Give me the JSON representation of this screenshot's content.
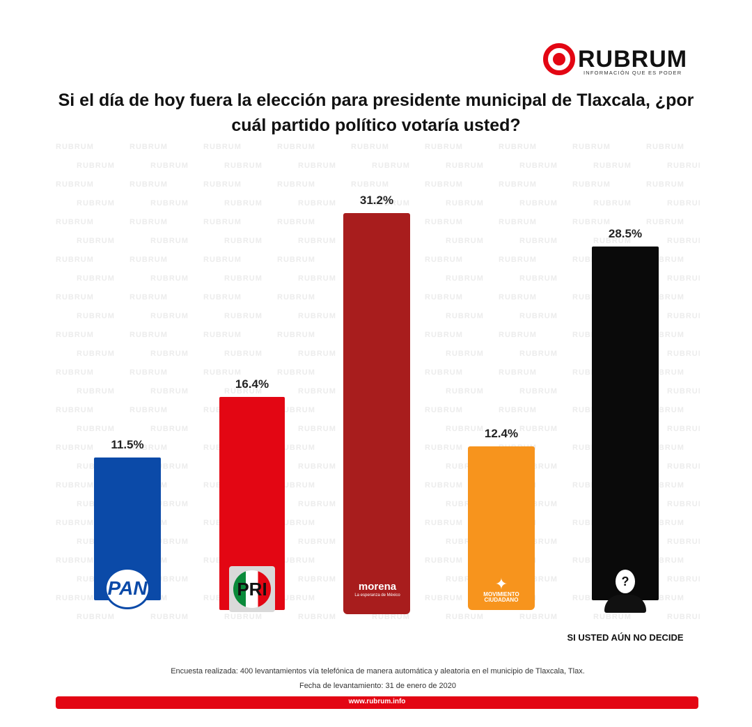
{
  "brand": {
    "name": "RUBRUM",
    "tagline": "INFORMACIÓN QUE ES PODER",
    "accent": "#e30613"
  },
  "title": "Si el día de hoy fuera la elección para presidente municipal de Tlaxcala, ¿por cuál partido político votaría usted?",
  "watermark_text": "RUBRUM",
  "chart_data": {
    "type": "bar",
    "title": "Si el día de hoy fuera la elección para presidente municipal de Tlaxcala, ¿por cuál partido político votaría usted?",
    "categories": [
      "PAN",
      "PRI",
      "morena",
      "Movimiento Ciudadano",
      "SI USTED AÚN NO DECIDE"
    ],
    "values": [
      11.5,
      16.4,
      31.2,
      12.4,
      28.5
    ],
    "value_labels": [
      "11.5%",
      "16.4%",
      "31.2%",
      "12.4%",
      "28.5%"
    ],
    "colors": [
      "#0b4aa8",
      "#e30613",
      "#a81d1d",
      "#f7941d",
      "#0a0a0a"
    ],
    "ylim": [
      0,
      31.2
    ],
    "grid": false,
    "legend": "none"
  },
  "logos": {
    "pan": "PAN",
    "pri": "PRI",
    "morena": "morena",
    "morena_sub": "La esperanza de México",
    "mc": "MOVIMIENTO CIUDADANO",
    "undecided_icon": "?"
  },
  "undecided_label": "SI USTED AÚN NO DECIDE",
  "footer": {
    "line1": "Encuesta realizada: 400 levantamientos vía telefónica de manera automática y aleatoria en el municipio de Tlaxcala, Tlax.",
    "line2": "Fecha de levantamiento: 31 de enero de 2020",
    "url": "www.rubrum.info"
  }
}
